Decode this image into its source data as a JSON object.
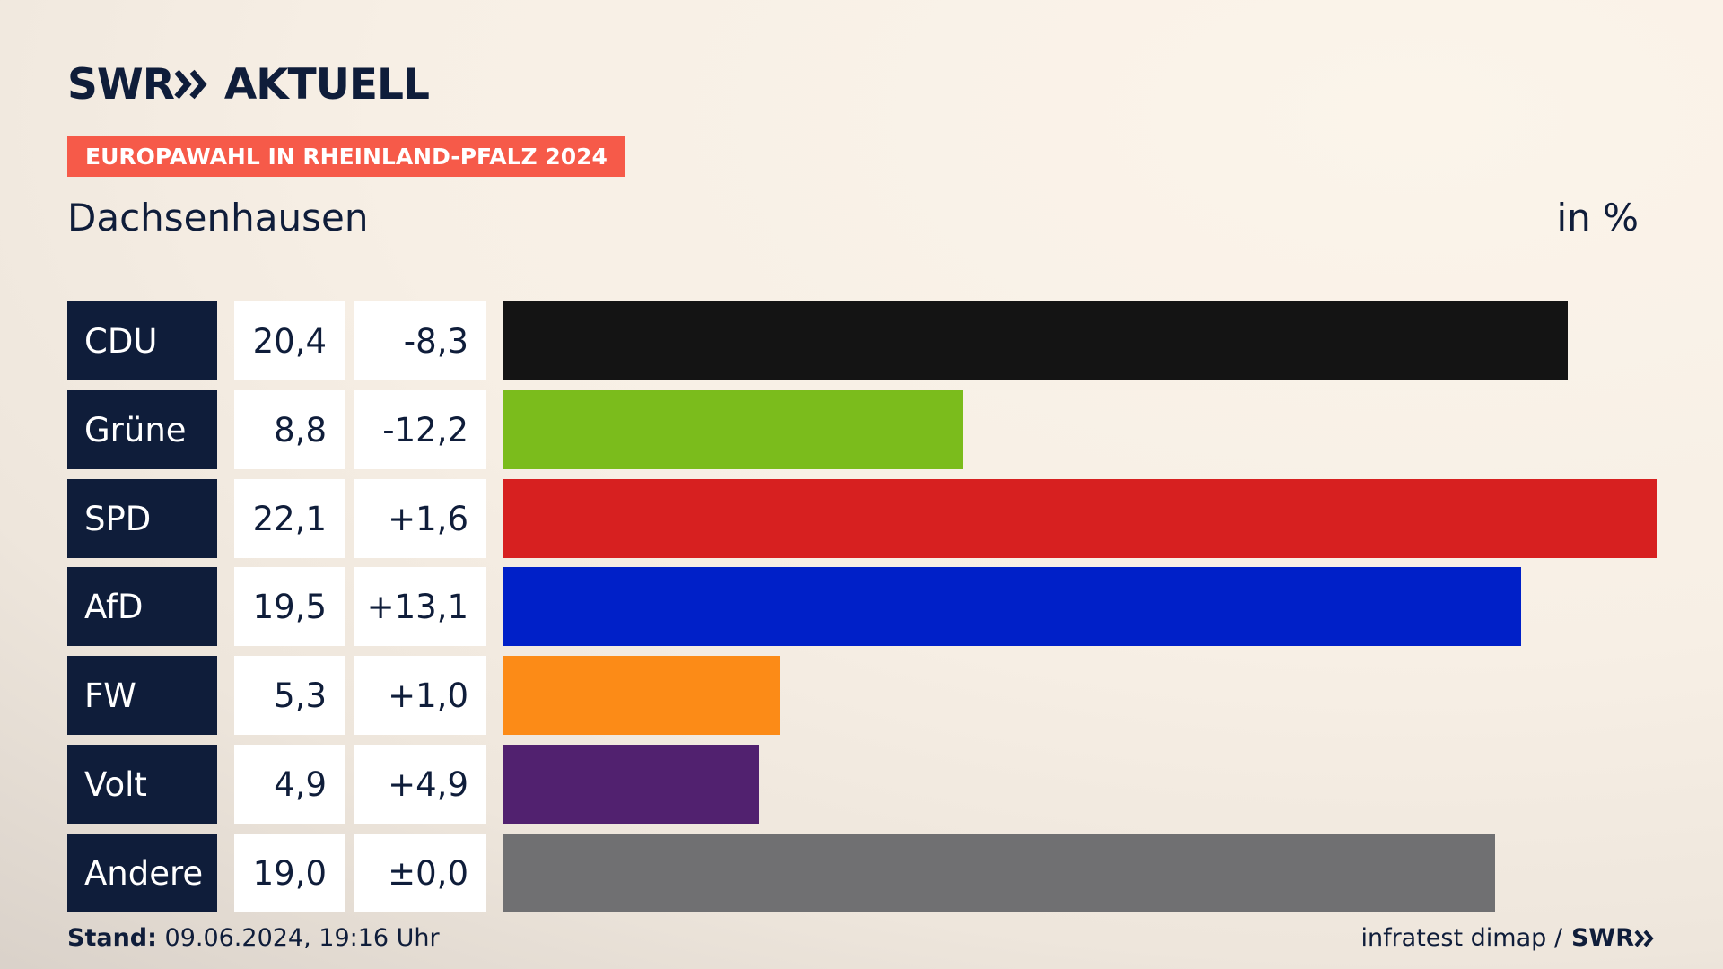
{
  "brand": {
    "logo_text": "SWR",
    "logo_suffix": "AKTUELL"
  },
  "header": {
    "badge": "EUROPAWAHL IN RHEINLAND-PFALZ 2024",
    "region": "Dachsenhausen",
    "unit": "in %"
  },
  "chart_data": {
    "type": "bar",
    "orientation": "horizontal",
    "categories": [
      "CDU",
      "Grüne",
      "SPD",
      "AfD",
      "FW",
      "Volt",
      "Andere"
    ],
    "values": [
      20.4,
      8.8,
      22.1,
      19.5,
      5.3,
      4.9,
      19.0
    ],
    "value_labels": [
      "20,4",
      "8,8",
      "22,1",
      "19,5",
      "5,3",
      "4,9",
      "19,0"
    ],
    "diff_labels": [
      "-8,3",
      "-12,2",
      "+1,6",
      "+13,1",
      "+1,0",
      "+4,9",
      "±0,0"
    ],
    "colors": [
      "#141414",
      "#7bbc1c",
      "#d72020",
      "#0020c8",
      "#fc8b17",
      "#51216f",
      "#707072"
    ],
    "xlim": [
      0,
      22.1
    ]
  },
  "footer": {
    "stand_label": "Stand:",
    "stand_value": "09.06.2024, 19:16 Uhr",
    "source": "infratest dimap /",
    "source_brand": "SWR"
  }
}
